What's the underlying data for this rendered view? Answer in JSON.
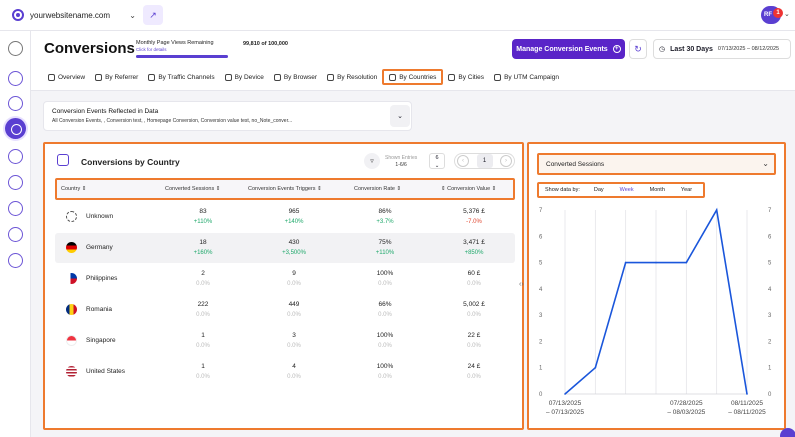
{
  "topbar": {
    "site_name": "yourwebsitename.com",
    "avatar_initials": "RF",
    "avatar_badge": "1"
  },
  "header": {
    "title": "Conversions",
    "quota_label": "Monthly Page Views Remaining",
    "quota_link": "Click for details",
    "quota_value": "99,810 of 100,000",
    "quota_used_fraction": 0.998,
    "manage_button": "Manage Conversion Events",
    "range_label": "Last 30 Days",
    "range_dates": "07/13/2025 – 08/12/2025"
  },
  "tabs": [
    {
      "label": "Overview",
      "icon": "eye-icon"
    },
    {
      "label": "By Referrer",
      "icon": "referrer-icon"
    },
    {
      "label": "By Traffic Channels",
      "icon": "channels-icon"
    },
    {
      "label": "By Device",
      "icon": "device-icon"
    },
    {
      "label": "By Browser",
      "icon": "browser-icon"
    },
    {
      "label": "By Resolution",
      "icon": "resolution-icon"
    },
    {
      "label": "By Countries",
      "icon": "user-icon",
      "active": true
    },
    {
      "label": "By Cities",
      "icon": "user-icon"
    },
    {
      "label": "By UTM Campaign",
      "icon": "globe-icon"
    }
  ],
  "filters": {
    "heading": "Conversion Events Reflected in Data",
    "values": "All Conversion Events,                    , Conversion test,                    , Homepage Conversion, Conversion value test, no_Note_conver..."
  },
  "table": {
    "title": "Conversions by Country",
    "shown_label": "Shown Entries",
    "shown_range": "1-6/6",
    "per_page": "6",
    "current_page": "1",
    "columns": [
      "Country",
      "Converted Sessions",
      "Conversion Events Triggers",
      "Conversion Rate",
      "Conversion Value"
    ],
    "rows": [
      {
        "country": "Unknown",
        "flag": "unknown",
        "sessions": "83",
        "sessions_d": "+110%",
        "sessions_t": "pos",
        "triggers": "965",
        "triggers_d": "+140%",
        "triggers_t": "pos",
        "rate": "86%",
        "rate_d": "+3.7%",
        "rate_t": "pos",
        "value": "5,376 £",
        "value_d": "-7.0%",
        "value_t": "neg"
      },
      {
        "country": "Germany",
        "flag": "germany",
        "sessions": "18",
        "sessions_d": "+160%",
        "sessions_t": "pos",
        "triggers": "430",
        "triggers_d": "+3,500%",
        "triggers_t": "pos",
        "rate": "75%",
        "rate_d": "+110%",
        "rate_t": "pos",
        "value": "3,471 £",
        "value_d": "+850%",
        "value_t": "pos"
      },
      {
        "country": "Philippines",
        "flag": "philippines",
        "sessions": "2",
        "sessions_d": "0.0%",
        "sessions_t": "mut",
        "triggers": "9",
        "triggers_d": "0.0%",
        "triggers_t": "mut",
        "rate": "100%",
        "rate_d": "0.0%",
        "rate_t": "mut",
        "value": "60 £",
        "value_d": "0.0%",
        "value_t": "mut"
      },
      {
        "country": "Romania",
        "flag": "romania",
        "sessions": "222",
        "sessions_d": "0.0%",
        "sessions_t": "mut",
        "triggers": "449",
        "triggers_d": "0.0%",
        "triggers_t": "mut",
        "rate": "66%",
        "rate_d": "0.0%",
        "rate_t": "mut",
        "value": "5,002 £",
        "value_d": "0.0%",
        "value_t": "mut"
      },
      {
        "country": "Singapore",
        "flag": "singapore",
        "sessions": "1",
        "sessions_d": "0.0%",
        "sessions_t": "mut",
        "triggers": "3",
        "triggers_d": "0.0%",
        "triggers_t": "mut",
        "rate": "100%",
        "rate_d": "0.0%",
        "rate_t": "mut",
        "value": "22 £",
        "value_d": "0.0%",
        "value_t": "mut"
      },
      {
        "country": "United States",
        "flag": "usa",
        "sessions": "1",
        "sessions_d": "0.0%",
        "sessions_t": "mut",
        "triggers": "4",
        "triggers_d": "0.0%",
        "triggers_t": "mut",
        "rate": "100%",
        "rate_d": "0.0%",
        "rate_t": "mut",
        "value": "24 £",
        "value_d": "0.0%",
        "value_t": "mut"
      }
    ]
  },
  "chart_panel": {
    "metric": "Converted Sessions",
    "show_label": "Show data by:",
    "options": [
      "Day",
      "Week",
      "Month",
      "Year"
    ],
    "selected": "Week"
  },
  "chart_data": {
    "type": "line",
    "x": [
      "07/13/2025 – 07/13/2025",
      "w2",
      "w3",
      "w4",
      "07/28/2025 – 08/03/2025",
      "w6",
      "08/11/2025 – 08/11/2025"
    ],
    "x_tick_labels": [
      {
        "index": 0,
        "line1": "07/13/2025",
        "line2": "– 07/13/2025"
      },
      {
        "index": 4,
        "line1": "07/28/2025",
        "line2": "– 08/03/2025"
      },
      {
        "index": 6,
        "line1": "08/11/2025",
        "line2": "– 08/11/2025"
      }
    ],
    "values": [
      0,
      1,
      5,
      5,
      5,
      7,
      0
    ],
    "ylim": [
      0,
      7
    ],
    "yticks": [
      0,
      1,
      2,
      3,
      4,
      5,
      6,
      7
    ],
    "grid": "vertical",
    "color": "#1a56db"
  },
  "colors": {
    "accent": "#5a3fd1",
    "highlight": "#ee7a2e",
    "positive": "#1ea86a",
    "negative": "#e0462f"
  }
}
